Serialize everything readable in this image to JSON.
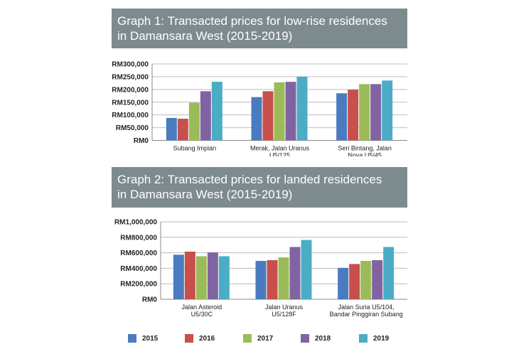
{
  "chart_data": [
    {
      "type": "bar",
      "title": "Graph 1: Transacted prices for low-rise residences",
      "subtitle": "in Damansara West (2015-2019)",
      "categories": [
        [
          "Subang Impian"
        ],
        [
          "Merak, Jalan Uranus",
          "U5/125"
        ],
        [
          "Seri Bintang, Jalan",
          "Nova U5/45"
        ]
      ],
      "series": [
        {
          "name": "2015",
          "color": "#4a7bc0",
          "values": [
            88000,
            170000,
            185000
          ]
        },
        {
          "name": "2016",
          "color": "#c84f4c",
          "values": [
            85000,
            193000,
            199000
          ]
        },
        {
          "name": "2017",
          "color": "#9bbb59",
          "values": [
            148000,
            228000,
            221000
          ]
        },
        {
          "name": "2018",
          "color": "#8064a2",
          "values": [
            193000,
            230000,
            221000
          ]
        },
        {
          "name": "2019",
          "color": "#4bacc6",
          "values": [
            230000,
            250000,
            235000
          ]
        }
      ],
      "ylim": [
        0,
        300000
      ],
      "yticks": [
        0,
        50000,
        100000,
        150000,
        200000,
        250000,
        300000
      ],
      "ytick_labels": [
        "RM0",
        "RM50,000",
        "RM100,000",
        "RM150,000",
        "RM200,000",
        "RM250,000",
        "RM300,000"
      ],
      "grid": true
    },
    {
      "type": "bar",
      "title": "Graph 2: Transacted prices for landed residences",
      "subtitle": "in Damansara West (2015-2019)",
      "categories": [
        [
          "Jalan Asteroid",
          "U5/30C"
        ],
        [
          "Jalan Uranus",
          "U5/128F"
        ],
        [
          "Jalan Suria U5/104,",
          "Bandar Pinggiran Subang"
        ]
      ],
      "series": [
        {
          "name": "2015",
          "color": "#4a7bc0",
          "values": [
            575000,
            495000,
            405000
          ]
        },
        {
          "name": "2016",
          "color": "#c84f4c",
          "values": [
            615000,
            505000,
            455000
          ]
        },
        {
          "name": "2017",
          "color": "#9bbb59",
          "values": [
            555000,
            540000,
            495000
          ]
        },
        {
          "name": "2018",
          "color": "#8064a2",
          "values": [
            605000,
            675000,
            505000
          ]
        },
        {
          "name": "2019",
          "color": "#4bacc6",
          "values": [
            555000,
            765000,
            675000
          ]
        }
      ],
      "ylim": [
        0,
        1000000
      ],
      "yticks": [
        0,
        200000,
        400000,
        600000,
        800000,
        1000000
      ],
      "ytick_labels": [
        "RM0",
        "RM200,000",
        "RM400,000",
        "RM600,000",
        "RM800,000",
        "RM1,000,000"
      ],
      "grid": true
    }
  ],
  "legend": [
    {
      "label": "2015",
      "color": "#4a7bc0"
    },
    {
      "label": "2016",
      "color": "#c84f4c"
    },
    {
      "label": "2017",
      "color": "#9bbb59"
    },
    {
      "label": "2018",
      "color": "#8064a2"
    },
    {
      "label": "2019",
      "color": "#4bacc6"
    }
  ]
}
